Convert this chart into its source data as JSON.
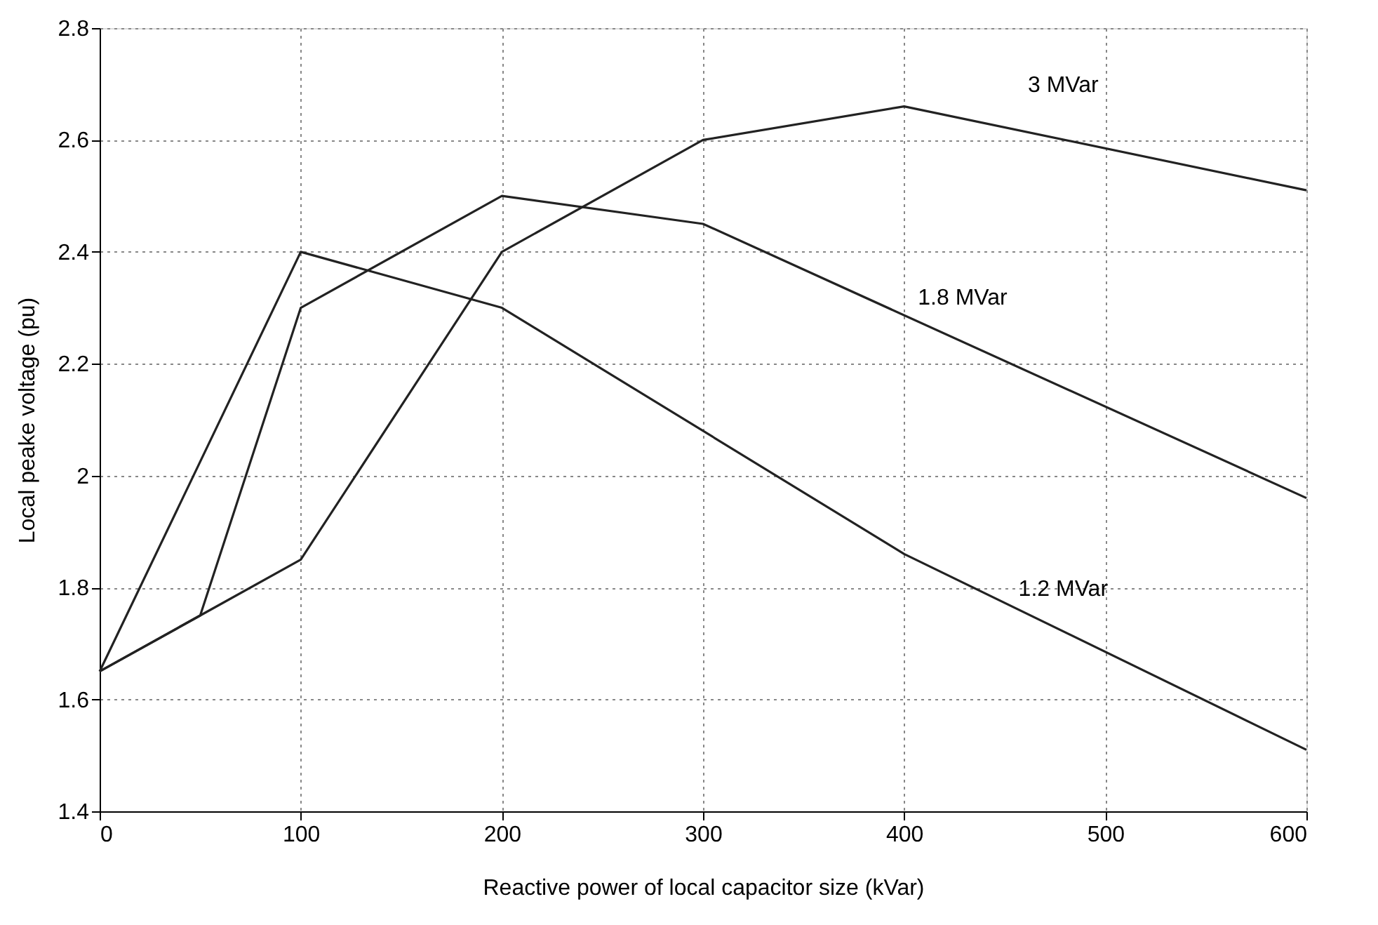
{
  "chart_data": {
    "type": "line",
    "xlabel": "Reactive power of local capacitor size (kVar)",
    "ylabel": "Local peake voltage (pu)",
    "series": [
      {
        "name": "1.2 MVar",
        "color": "#222222",
        "x": [
          0,
          100,
          200,
          400,
          600
        ],
        "values": [
          1.65,
          2.4,
          2.3,
          1.86,
          1.51
        ]
      },
      {
        "name": "1.8 MVar",
        "color": "#222222",
        "x": [
          0,
          50,
          100,
          200,
          300,
          600
        ],
        "values": [
          1.65,
          1.75,
          2.3,
          2.5,
          2.45,
          1.96
        ]
      },
      {
        "name": "3 MVar",
        "color": "#222222",
        "x": [
          0,
          50,
          100,
          200,
          300,
          400,
          600
        ],
        "values": [
          1.65,
          1.75,
          1.85,
          2.4,
          2.6,
          2.66,
          2.51
        ]
      }
    ],
    "xlim": [
      0,
      600
    ],
    "xticks": [
      0,
      100,
      200,
      300,
      400,
      500,
      600
    ],
    "ylim": [
      1.4,
      2.8
    ],
    "yticks": [
      1.4,
      1.6,
      1.8,
      {
        "value": 2,
        "label": "2"
      },
      2.2,
      2.4,
      2.6,
      2.8
    ],
    "grid": true,
    "legend": false,
    "marker": "none",
    "line_style": "solid"
  }
}
